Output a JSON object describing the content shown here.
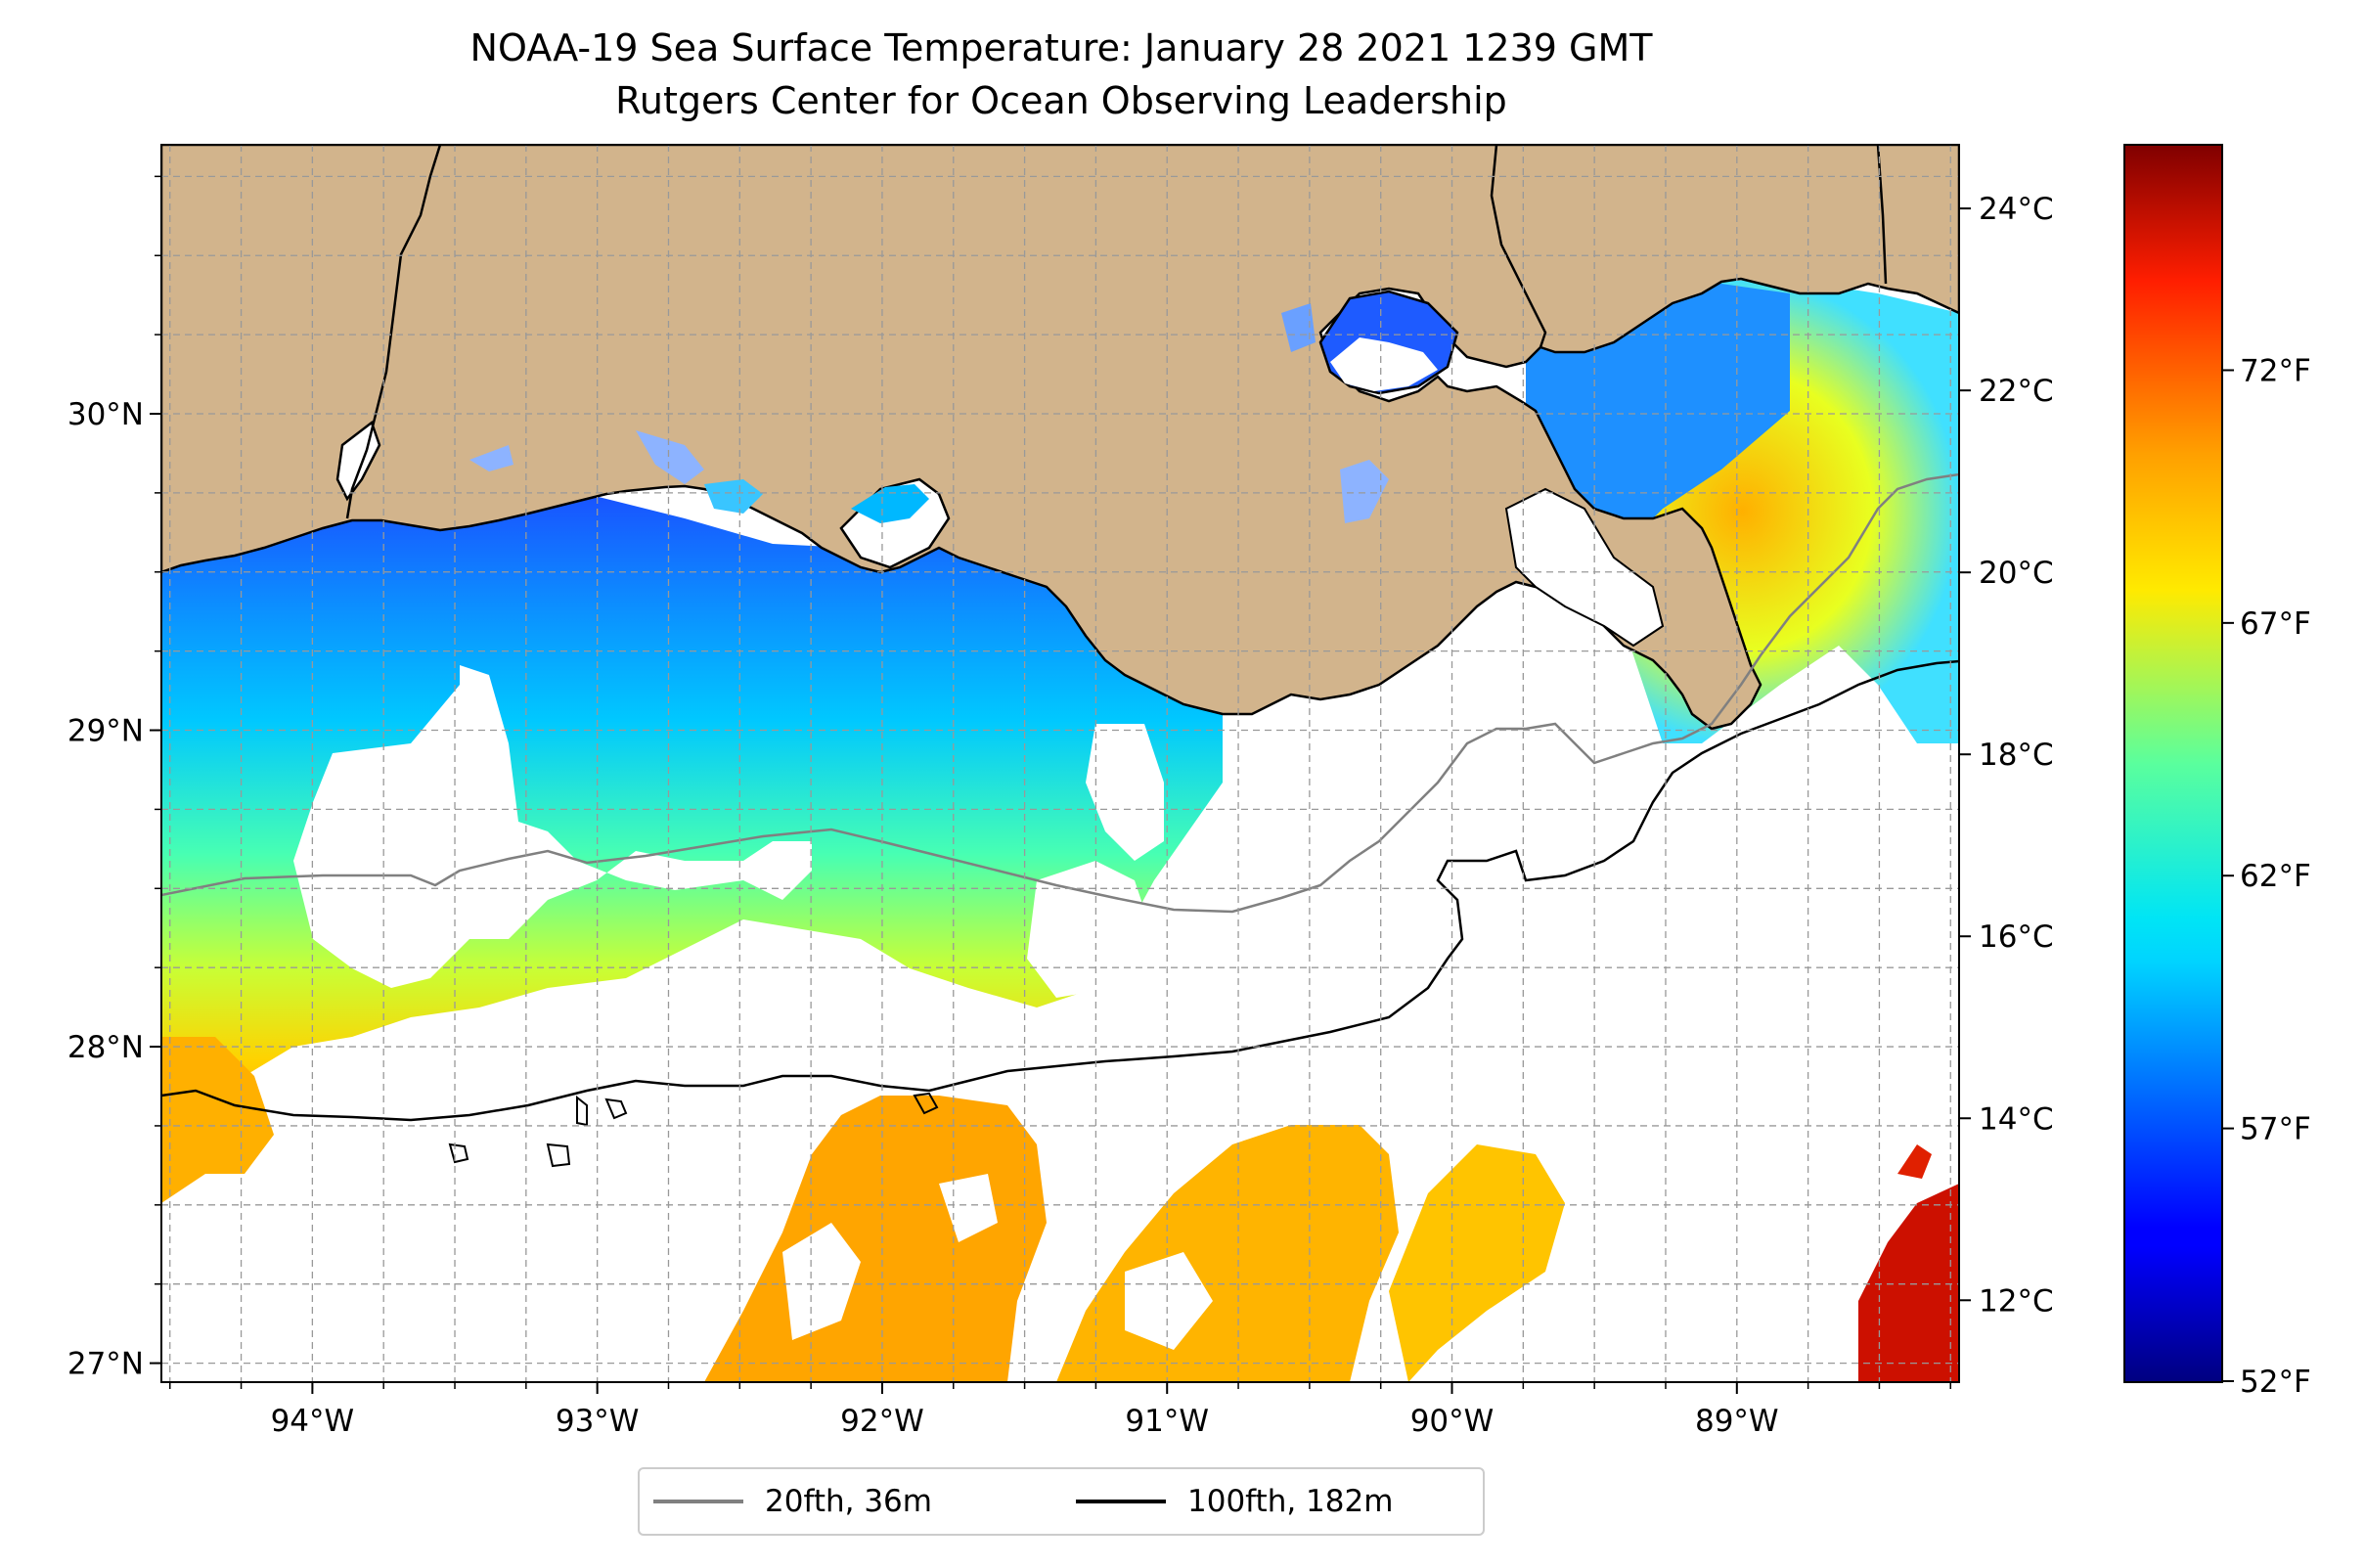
{
  "title": "NOAA-19 Sea Surface Temperature: January 28 2021 1239 GMT",
  "subtitle": "Rutgers Center for Ocean Observing Leadership",
  "map": {
    "lon_range": [
      -94.53,
      -88.22
    ],
    "lat_range": [
      26.94,
      30.85
    ],
    "lon_ticks": [
      {
        "value": -94,
        "label": "94°W"
      },
      {
        "value": -93,
        "label": "93°W"
      },
      {
        "value": -92,
        "label": "92°W"
      },
      {
        "value": -91,
        "label": "91°W"
      },
      {
        "value": -90,
        "label": "90°W"
      },
      {
        "value": -89,
        "label": "89°W"
      }
    ],
    "lat_ticks": [
      {
        "value": 27,
        "label": "27°N"
      },
      {
        "value": 28,
        "label": "28°N"
      },
      {
        "value": 29,
        "label": "29°N"
      },
      {
        "value": 30,
        "label": "30°N"
      }
    ],
    "gridlines": "dashed",
    "land_color": "#d2b48c",
    "coastline_color": "#000000"
  },
  "colorbar": {
    "colormap": "jet",
    "celsius_range": [
      11.1,
      24.7
    ],
    "celsius_ticks": [
      {
        "value": 12,
        "label": "12°C"
      },
      {
        "value": 14,
        "label": "14°C"
      },
      {
        "value": 16,
        "label": "16°C"
      },
      {
        "value": 18,
        "label": "18°C"
      },
      {
        "value": 20,
        "label": "20°C"
      },
      {
        "value": 22,
        "label": "22°C"
      },
      {
        "value": 24,
        "label": "24°C"
      }
    ],
    "fahrenheit_ticks": [
      {
        "value": 52,
        "label": "52°F"
      },
      {
        "value": 57,
        "label": "57°F"
      },
      {
        "value": 62,
        "label": "62°F"
      },
      {
        "value": 67,
        "label": "67°F"
      },
      {
        "value": 72,
        "label": "72°F"
      }
    ]
  },
  "legend": {
    "placement": "bottom-center",
    "items": [
      {
        "label": "20fth, 36m",
        "color": "#808080"
      },
      {
        "label": "100fth, 182m",
        "color": "#000000"
      }
    ]
  }
}
